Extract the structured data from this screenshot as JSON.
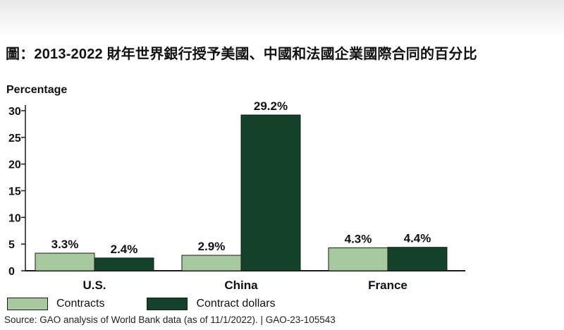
{
  "chart_data": {
    "type": "bar",
    "title": "圖：2013-2022 財年世界銀行授予美國、中國和法國企業國際合同的百分比",
    "ylabel": "Percentage",
    "xlabel": "",
    "categories": [
      "U.S.",
      "China",
      "France"
    ],
    "series": [
      {
        "name": "Contracts",
        "values": [
          3.3,
          2.9,
          4.3
        ],
        "labels": [
          "3.3%",
          "2.9%",
          "4.3%"
        ],
        "color": "#a6c9a0"
      },
      {
        "name": "Contract dollars",
        "values": [
          2.4,
          29.2,
          4.4
        ],
        "labels": [
          "2.4%",
          "29.2%",
          "4.4%"
        ],
        "color": "#14412a"
      }
    ],
    "ylim": [
      0,
      30
    ],
    "yticks": [
      "0",
      "5",
      "10",
      "15",
      "20",
      "25",
      "30"
    ],
    "grid": false,
    "legend": "bottom-left"
  },
  "source_note": "Source: GAO analysis of World Bank data (as of 11/1/2022).  |  GAO-23-105543"
}
